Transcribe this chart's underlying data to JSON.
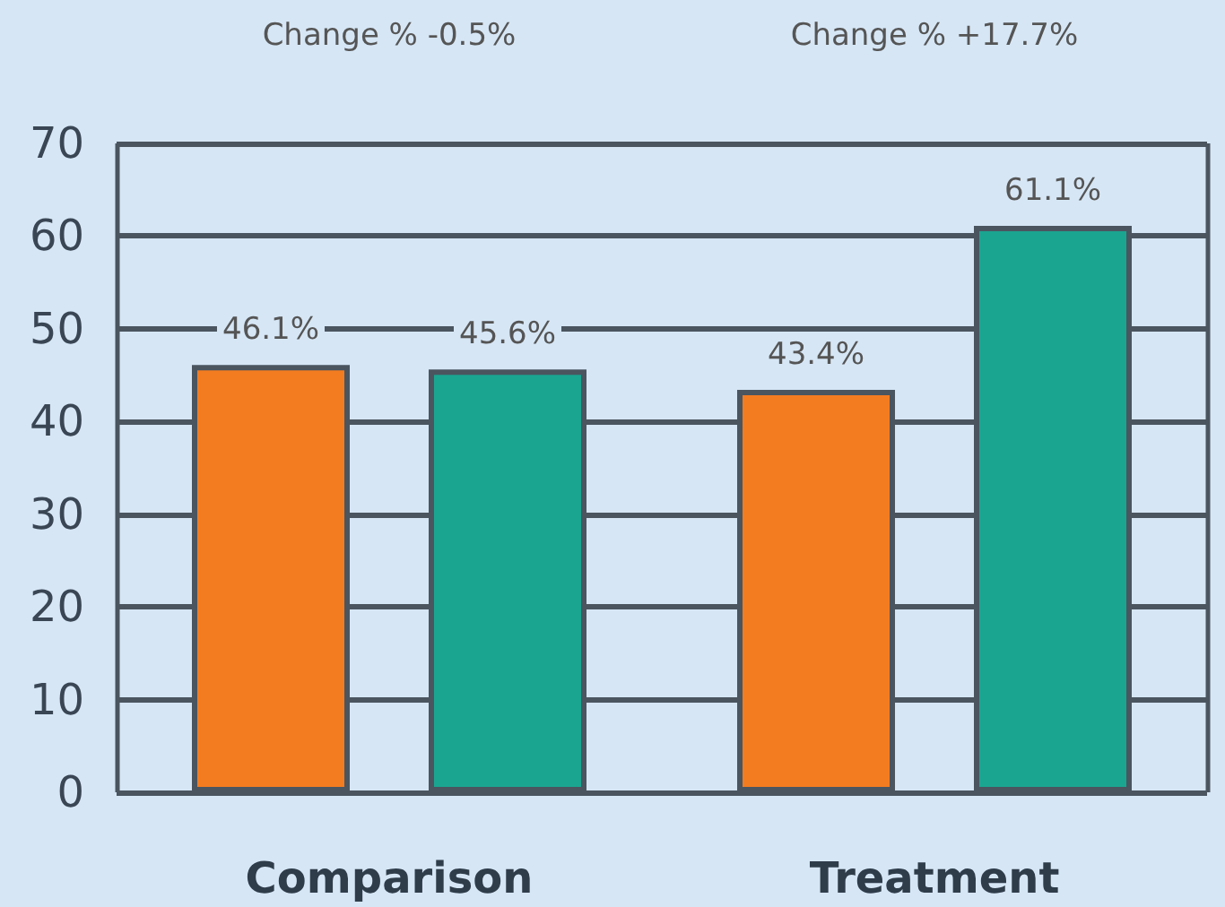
{
  "chart_data": {
    "type": "bar",
    "categories": [
      "Comparison",
      "Treatment"
    ],
    "series": [
      {
        "color": "#f47c20",
        "values": [
          46.1,
          43.4
        ],
        "value_labels": [
          "46.1%",
          "43.4%"
        ]
      },
      {
        "color": "#1aa591",
        "values": [
          45.6,
          61.1
        ],
        "value_labels": [
          "45.6%",
          "61.1%"
        ]
      }
    ],
    "ylim": [
      0,
      70
    ],
    "yticks": [
      0,
      10,
      20,
      30,
      40,
      50,
      60,
      70
    ],
    "grid": true,
    "annotations": [
      "Change % -0.5%",
      "Change % +17.7%"
    ]
  }
}
